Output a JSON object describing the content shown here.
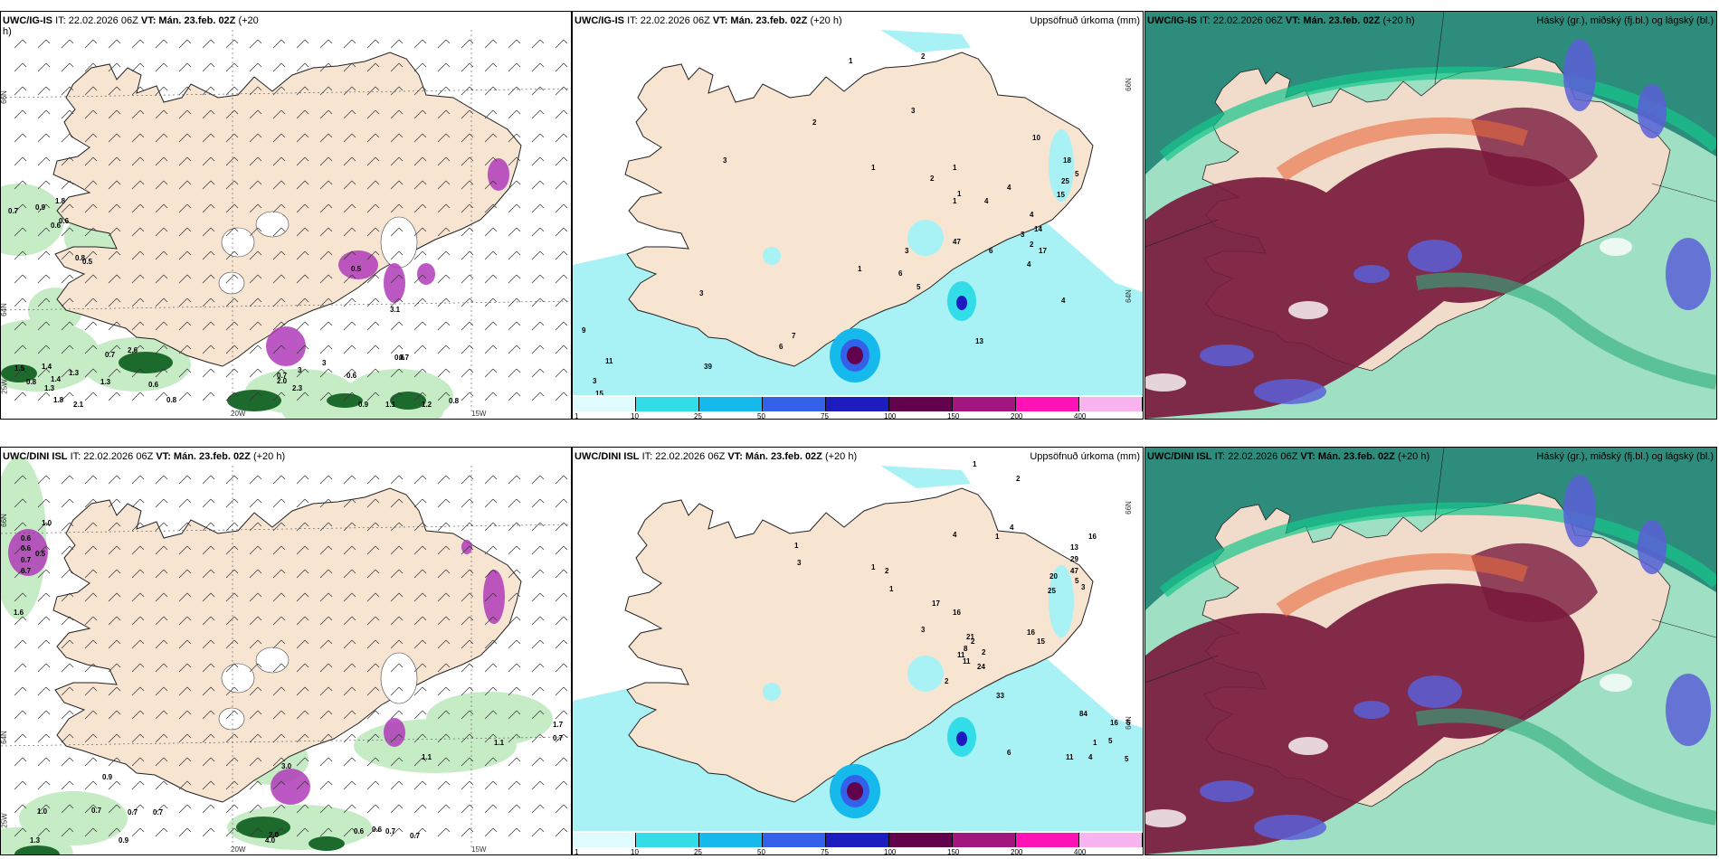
{
  "rows": [
    {
      "model": "UWC/IG-IS",
      "it": "IT: 22.02.2026 06Z",
      "vt_label": "VT:",
      "vt": "Mán. 23.feb. 02Z",
      "lead": "(+20 h)",
      "panel1_title_lead": "(+20",
      "panel1_title_lead2": "h)",
      "panel1_numbers": [
        "0.7",
        "0.9",
        "1.8",
        "0.6",
        "0.8",
        "0.5",
        "0.6",
        "0.5",
        "3.1",
        "0.6",
        "3",
        "3",
        "0.7",
        "0.6",
        "0.7",
        "2.3",
        "0.6",
        "0.8",
        "1.5",
        "1.4",
        "1.3",
        "1.4",
        "0.8",
        "1.3",
        "1.8",
        "2.1",
        "1.3",
        "0.9",
        "1.1",
        "1.2",
        "0.8",
        "2.0",
        "0.7",
        "2.6"
      ],
      "panel2_numbers": [
        "1",
        "2",
        "2",
        "3",
        "10",
        "3",
        "1",
        "1",
        "2",
        "18",
        "5",
        "25",
        "15",
        "1",
        "4",
        "1",
        "4",
        "14",
        "4",
        "17",
        "3",
        "2",
        "4",
        "1",
        "3",
        "6",
        "5",
        "6",
        "3",
        "9",
        "7",
        "11",
        "6",
        "3",
        "39",
        "15",
        "13",
        "4",
        "47"
      ],
      "lat_labels": [
        "66N",
        "64N"
      ],
      "lon_labels": [
        "20W",
        "15W"
      ],
      "edge_labels": [
        "25W",
        "66N",
        "64N"
      ]
    },
    {
      "model": "UWC/DINI ISL",
      "it": "IT: 22.02.2026 06Z",
      "vt_label": "VT:",
      "vt": "Mán. 23.feb. 02Z",
      "lead": "(+20 h)",
      "panel1_numbers": [
        "1.0",
        "0.6",
        "0.6",
        "0.7",
        "0.5",
        "0.7",
        "1.6",
        "1.7",
        "0.7",
        "1.1",
        "1.1",
        "0.9",
        "0.7",
        "0.7",
        "0.7",
        "1.3",
        "2.0",
        "4.0",
        "0.6",
        "0.6",
        "0.7",
        "0.7",
        "3.0",
        "0.9",
        "1.0"
      ],
      "panel2_numbers": [
        "1",
        "2",
        "4",
        "1",
        "1",
        "3",
        "1",
        "2",
        "16",
        "13",
        "29",
        "47",
        "5",
        "20",
        "25",
        "3",
        "1",
        "3",
        "17",
        "16",
        "21",
        "2",
        "2",
        "16",
        "15",
        "4",
        "8",
        "11",
        "11",
        "24",
        "2",
        "33",
        "84",
        "16",
        "5",
        "5",
        "5",
        "4",
        "1",
        "11",
        "6"
      ],
      "lat_labels": [
        "66N",
        "64N"
      ],
      "lon_labels": [
        "20W",
        "15W"
      ],
      "edge_labels": [
        "25W",
        "66N",
        "64N"
      ]
    }
  ],
  "precip_title": "Uppsöfnuð úrkoma (mm)",
  "cloud_title": "Háský (gr.), miðský (fj.bl.) og lágský (bl.)",
  "colorbar": {
    "ticks": [
      "1",
      "10",
      "25",
      "50",
      "75",
      "100",
      "150",
      "200",
      "400"
    ],
    "colors": [
      "#e0fbfd",
      "#32dde8",
      "#16b9ec",
      "#3361e9",
      "#1d1dbf",
      "#62024d",
      "#a2177f",
      "#ff12b6",
      "#f7b4ef"
    ]
  },
  "colors": {
    "land": "#f7e5d2",
    "precip_light": "#a8f2f6",
    "wind_green_light": "#c6ecc5",
    "wind_green_dark": "#1c6b2c",
    "snow_purple": "#b03bb8",
    "cloud_high": "#7a1a3e",
    "cloud_mid": "#3a8f6e",
    "cloud_low": "#5b5fd8",
    "ocean_teal": "#2e8c7c"
  }
}
